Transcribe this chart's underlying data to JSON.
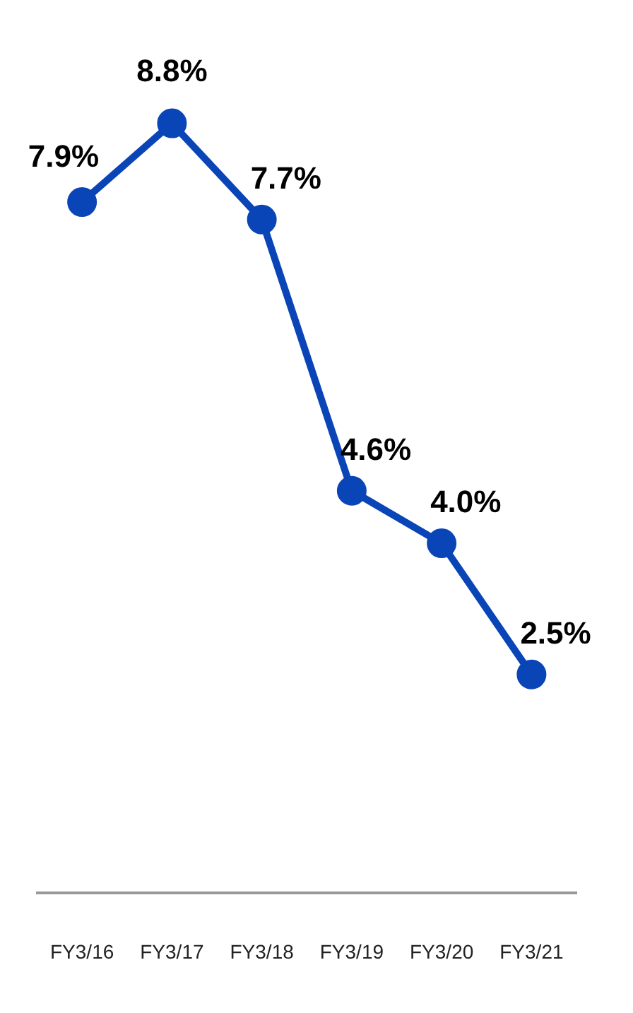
{
  "chart_data": {
    "type": "line",
    "categories": [
      "FY3/16",
      "FY3/17",
      "FY3/18",
      "FY3/19",
      "FY3/20",
      "FY3/21"
    ],
    "series": [
      {
        "color": "#0a45b8",
        "values": [
          7.9,
          8.8,
          7.7,
          4.6,
          4.0,
          2.5
        ],
        "value_labels": [
          "7.9%",
          "8.8%",
          "7.7%",
          "4.6%",
          "4.0%",
          "2.5%"
        ]
      }
    ],
    "marker": "circle",
    "line_style": "solid",
    "grid": false,
    "legend": false,
    "tick_labels": "x"
  }
}
